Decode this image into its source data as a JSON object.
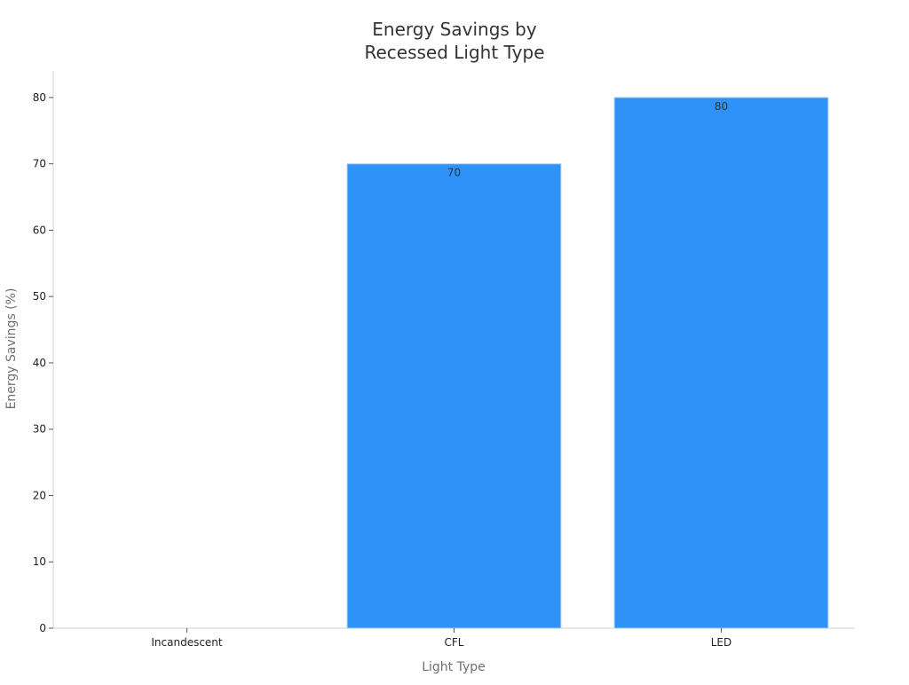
{
  "chart_data": {
    "type": "bar",
    "title_lines": [
      "Energy Savings by",
      "Recessed Light Type"
    ],
    "xlabel": "Light Type",
    "ylabel": "Energy Savings (%)",
    "categories": [
      "Incandescent",
      "CFL",
      "LED"
    ],
    "values": [
      0,
      70,
      80
    ],
    "data_labels": [
      "",
      "70",
      "80"
    ],
    "ylim": [
      0,
      84
    ],
    "yticks": [
      0,
      10,
      20,
      30,
      40,
      50,
      60,
      70,
      80
    ],
    "grid": false,
    "legend": "none",
    "bar_color": "#2f92f8",
    "axis_color": "#d0d0d0"
  }
}
